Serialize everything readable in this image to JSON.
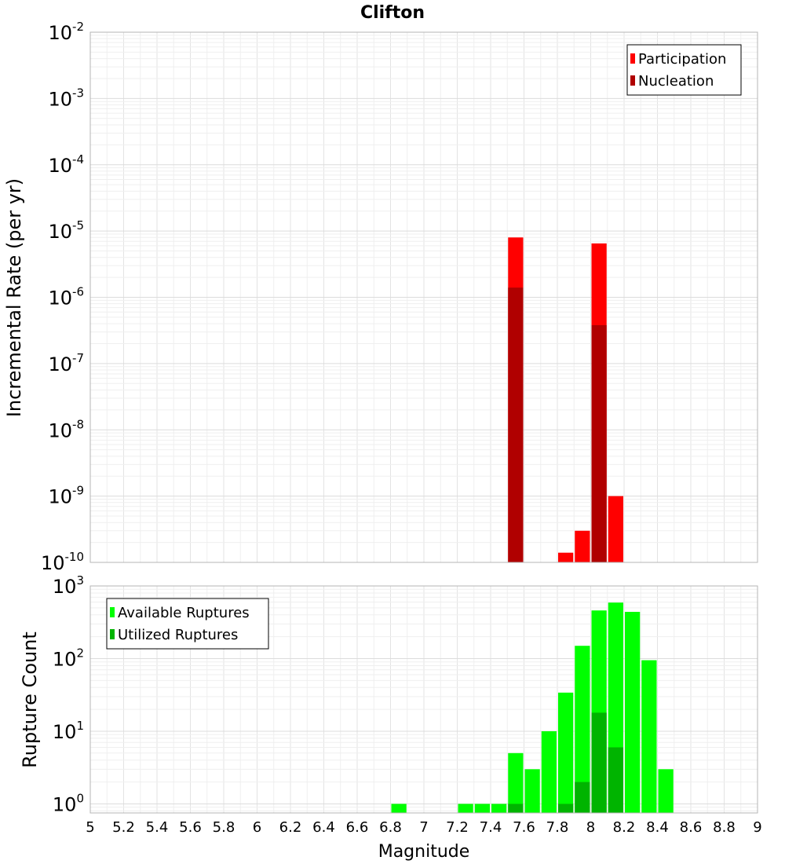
{
  "chart_data": {
    "title": "Clifton",
    "xlabel": "Magnitude",
    "xlim": [
      5,
      9
    ],
    "x_ticks": [
      "5",
      "5.2",
      "5.4",
      "5.6",
      "5.8",
      "6",
      "6.2",
      "6.4",
      "6.6",
      "6.8",
      "7",
      "7.2",
      "7.4",
      "7.6",
      "7.8",
      "8",
      "8.2",
      "8.4",
      "8.6",
      "8.8",
      "9"
    ],
    "bin_width": 0.1,
    "panels": [
      {
        "type": "bar",
        "scale": "log",
        "ylabel": "Incremental Rate (per yr)",
        "ylim": [
          1e-10,
          0.01
        ],
        "y_tick_exponents": [
          -2,
          -3,
          -4,
          -5,
          -6,
          -7,
          -8,
          -9,
          -10
        ],
        "legend_position": "top-right",
        "series": [
          {
            "name": "Participation",
            "color": "#ff0000",
            "x": [
              7.55,
              7.85,
              7.95,
              8.05,
              8.15
            ],
            "values": [
              8e-06,
              1.4e-10,
              3e-10,
              6.5e-06,
              1e-09
            ]
          },
          {
            "name": "Nucleation",
            "color": "#b00000",
            "x": [
              7.55,
              8.05
            ],
            "values": [
              1.4e-06,
              3.8e-07
            ]
          }
        ]
      },
      {
        "type": "bar",
        "scale": "log",
        "ylabel": "Rupture Count",
        "ylim": [
          0.75,
          1000
        ],
        "y_tick_exponents": [
          3,
          2,
          1,
          0
        ],
        "legend_position": "top-left",
        "series": [
          {
            "name": "Available Ruptures",
            "color": "#00ff00",
            "x": [
              6.85,
              7.25,
              7.35,
              7.45,
              7.55,
              7.65,
              7.75,
              7.85,
              7.95,
              8.05,
              8.15,
              8.25,
              8.35,
              8.45
            ],
            "values": [
              1,
              1,
              1,
              1,
              5,
              3,
              10,
              34,
              150,
              460,
              590,
              440,
              95,
              3
            ]
          },
          {
            "name": "Utilized Ruptures",
            "color": "#00b400",
            "x": [
              7.55,
              7.85,
              7.95,
              8.05,
              8.15
            ],
            "values": [
              1,
              1,
              2,
              18,
              6
            ]
          }
        ]
      }
    ]
  }
}
